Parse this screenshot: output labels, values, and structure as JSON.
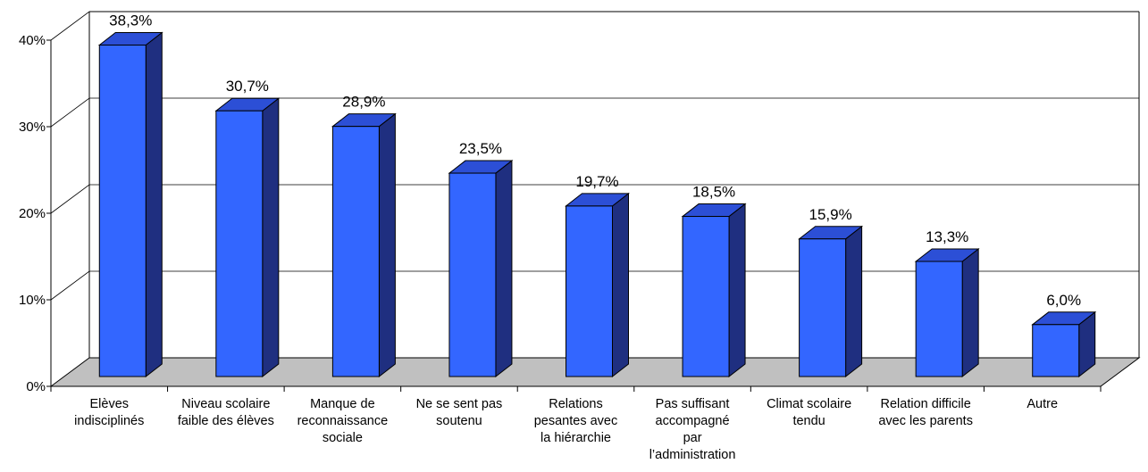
{
  "chart_data": {
    "type": "bar",
    "categories": [
      [
        "Elèves",
        "indisciplinés"
      ],
      [
        "Niveau scolaire",
        "faible des élèves"
      ],
      [
        "Manque de",
        "reconnaissance",
        "sociale"
      ],
      [
        "Ne se sent pas",
        "soutenu"
      ],
      [
        "Relations",
        "pesantes avec",
        "la hiérarchie"
      ],
      [
        "Pas suffisant",
        "accompagné",
        "par",
        "l’administration"
      ],
      [
        "Climat scolaire",
        "tendu"
      ],
      [
        "Relation difficile",
        "avec les parents"
      ],
      [
        "Autre"
      ]
    ],
    "values": [
      38.3,
      30.7,
      28.9,
      23.5,
      19.7,
      18.5,
      15.9,
      13.3,
      6.0
    ],
    "value_labels": [
      "38,3%",
      "30,7%",
      "28,9%",
      "23,5%",
      "19,7%",
      "18,5%",
      "15,9%",
      "13,3%",
      "6,0%"
    ],
    "yticks": [
      {
        "value": 0,
        "label": "0%"
      },
      {
        "value": 10,
        "label": "10%"
      },
      {
        "value": 20,
        "label": "20%"
      },
      {
        "value": 30,
        "label": "30%"
      },
      {
        "value": 40,
        "label": "40%"
      }
    ],
    "ylim": [
      0,
      40
    ],
    "grid": true,
    "three_d": true,
    "colors": {
      "bar_front": "#3366ff",
      "bar_side": "#1f2f80",
      "bar_top": "#2c4fd6",
      "floor": "#c0c0c0",
      "grid": "#000000"
    }
  }
}
